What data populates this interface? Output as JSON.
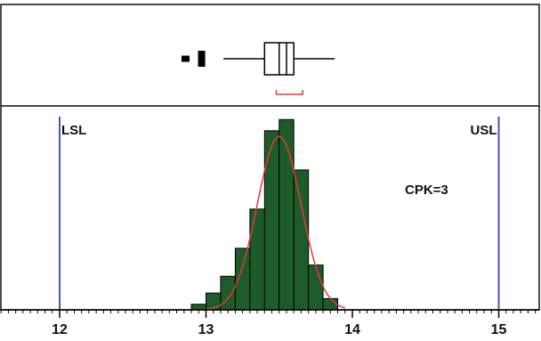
{
  "chart_data": {
    "type": "bar",
    "xlim": [
      11.6,
      15.3
    ],
    "ylim": [
      0,
      35
    ],
    "x_ticks": [
      12,
      13,
      14,
      15
    ],
    "x_tick_labels": [
      "12",
      "13",
      "14",
      "15"
    ],
    "minor_tick_step": 0.05,
    "bin_width": 0.1,
    "bins": [
      {
        "x": 12.9,
        "count": 1
      },
      {
        "x": 13.0,
        "count": 3
      },
      {
        "x": 13.1,
        "count": 6
      },
      {
        "x": 13.2,
        "count": 11
      },
      {
        "x": 13.3,
        "count": 18
      },
      {
        "x": 13.4,
        "count": 32
      },
      {
        "x": 13.5,
        "count": 34
      },
      {
        "x": 13.6,
        "count": 25
      },
      {
        "x": 13.7,
        "count": 8
      },
      {
        "x": 13.8,
        "count": 2
      }
    ],
    "density_curve": {
      "mean": 13.5,
      "sd": 0.15,
      "peak": 31
    },
    "boxplot": {
      "whisker_low": 13.12,
      "q1": 13.4,
      "median": 13.5,
      "mean": 13.55,
      "q3": 13.6,
      "whisker_high": 13.88,
      "outliers": [
        12.86,
        12.97
      ],
      "shortest_half": [
        13.48,
        13.66
      ]
    },
    "spec_limits": [
      {
        "label": "LSL",
        "value": 12
      },
      {
        "label": "USL",
        "value": 15
      }
    ],
    "annotation": "CPK=3",
    "colors": {
      "bars": "#1e5b2a",
      "curve": "#e8383b",
      "spec_lines": "#4a55b8",
      "shortest_half": "#e8383b",
      "frame": "#111111"
    }
  }
}
